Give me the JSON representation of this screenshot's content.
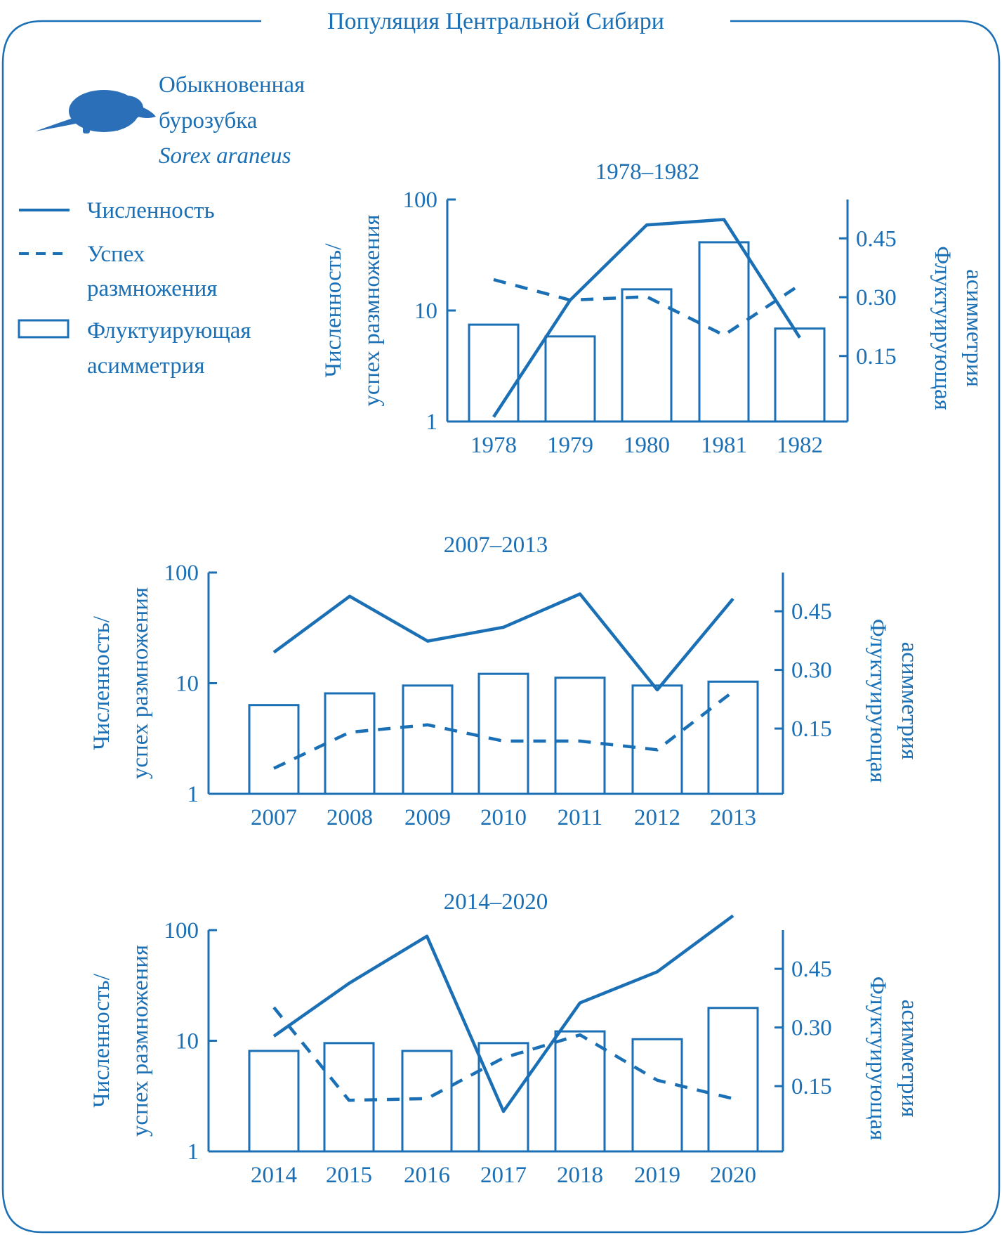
{
  "header": {
    "title": "Популяция Центральной Сибири"
  },
  "species": {
    "name_line1": "Обыкновенная",
    "name_line2": "бурозубка",
    "latin": "Sorex araneus",
    "icon": "shrew-icon"
  },
  "legend": {
    "items": [
      {
        "label": [
          "Численность"
        ],
        "style": "solid-line"
      },
      {
        "label": [
          "Успех",
          "размножения"
        ],
        "style": "dashed-line"
      },
      {
        "label": [
          "Флуктуирующая",
          "асимметрия"
        ],
        "style": "bar"
      }
    ]
  },
  "colors": {
    "accent": "#1a6fb5"
  },
  "chart_data": [
    {
      "type": "bar",
      "title": "1978–1982",
      "ylabel": [
        "Численность/",
        "успех размножения"
      ],
      "y2label": [
        "Флуктуирующая",
        "асимметрия"
      ],
      "yscale": "log",
      "ylim": [
        1,
        100
      ],
      "yticks": [
        "1",
        "10",
        "100"
      ],
      "y2ticks": [
        "0.15",
        "0.30",
        "0.45"
      ],
      "y2lim": [
        0,
        0.57
      ],
      "categories": [
        "1978",
        "1979",
        "1980",
        "1981",
        "1982"
      ],
      "series": [
        {
          "name": "Численность",
          "kind": "line-solid",
          "axis": "left",
          "values": [
            1.1,
            12.4,
            59,
            66,
            5.7
          ]
        },
        {
          "name": "Успех размножения",
          "kind": "line-dashed",
          "axis": "left",
          "values": [
            19,
            12.4,
            13.3,
            6,
            17
          ]
        },
        {
          "name": "Флуктуирующая асимметрия",
          "kind": "bar",
          "axis": "right",
          "values": [
            0.23,
            0.2,
            0.32,
            0.44,
            0.22
          ]
        }
      ]
    },
    {
      "type": "bar",
      "title": "2007–2013",
      "ylabel": [
        "Численность/",
        "успех размножения"
      ],
      "y2label": [
        "Флуктуирующая",
        "асимметрия"
      ],
      "yscale": "log",
      "ylim": [
        1,
        100
      ],
      "yticks": [
        "1",
        "10",
        "100"
      ],
      "y2ticks": [
        "0.15",
        "0.30",
        "0.45"
      ],
      "y2lim": [
        0,
        0.57
      ],
      "categories": [
        "2007",
        "2008",
        "2009",
        "2010",
        "2011",
        "2012",
        "2013"
      ],
      "series": [
        {
          "name": "Численность",
          "kind": "line-solid",
          "axis": "left",
          "values": [
            19,
            61,
            24,
            32,
            64,
            8.7,
            58
          ]
        },
        {
          "name": "Успех размножения",
          "kind": "line-dashed",
          "axis": "left",
          "values": [
            1.7,
            3.6,
            4.2,
            3.0,
            3.0,
            2.5,
            8.4
          ]
        },
        {
          "name": "Флуктуирующая асимметрия",
          "kind": "bar",
          "axis": "right",
          "values": [
            0.21,
            0.24,
            0.26,
            0.29,
            0.28,
            0.26,
            0.27
          ]
        }
      ]
    },
    {
      "type": "bar",
      "title": "2014–2020",
      "ylabel": [
        "Численность/",
        "успех размножения"
      ],
      "y2label": [
        "Флуктуирующая",
        "асимметрия"
      ],
      "yscale": "log",
      "ylim": [
        1,
        100
      ],
      "yticks": [
        "1",
        "10",
        "100"
      ],
      "y2ticks": [
        "0.15",
        "0.30",
        "0.45"
      ],
      "y2lim": [
        0,
        0.57
      ],
      "categories": [
        "2014",
        "2015",
        "2016",
        "2017",
        "2018",
        "2019",
        "2020"
      ],
      "series": [
        {
          "name": "Численность",
          "kind": "line-solid",
          "axis": "left",
          "values": [
            11,
            33,
            88,
            2.3,
            22,
            42,
            135
          ]
        },
        {
          "name": "Успех размножения",
          "kind": "line-dashed",
          "axis": "left",
          "values": [
            20,
            2.9,
            3.0,
            7.0,
            11.3,
            4.4,
            3.0
          ]
        },
        {
          "name": "Флуктуирующая асимметрия",
          "kind": "bar",
          "axis": "right",
          "values": [
            0.24,
            0.26,
            0.24,
            0.26,
            0.29,
            0.27,
            0.35
          ]
        }
      ]
    }
  ]
}
